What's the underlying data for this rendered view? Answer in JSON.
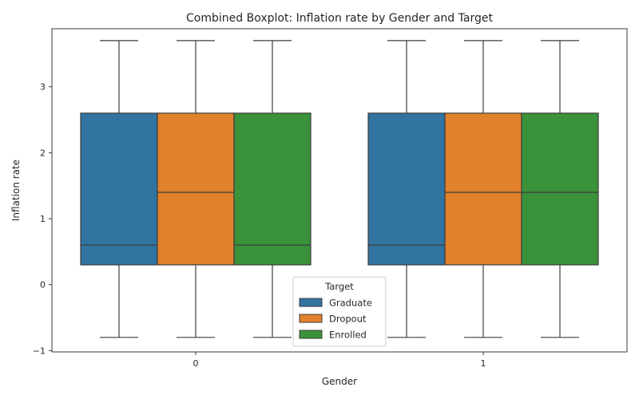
{
  "chart_data": {
    "type": "boxplot",
    "title": "Combined Boxplot: Inflation rate by Gender and Target",
    "xlabel": "Gender",
    "ylabel": "Inflation rate",
    "categories": [
      "0",
      "1"
    ],
    "ylim": [
      -1.02,
      3.88
    ],
    "yticks": [
      -1,
      0,
      1,
      2,
      3
    ],
    "ytick_labels": [
      "−1",
      "0",
      "1",
      "2",
      "3"
    ],
    "grid": false,
    "legend": {
      "title": "Target",
      "position": "lower-center"
    },
    "series": [
      {
        "name": "Graduate",
        "color": "#3274a1",
        "boxes": [
          {
            "whisker_low": -0.8,
            "q1": 0.3,
            "median": 0.6,
            "q3": 2.6,
            "whisker_high": 3.7
          },
          {
            "whisker_low": -0.8,
            "q1": 0.3,
            "median": 0.6,
            "q3": 2.6,
            "whisker_high": 3.7
          }
        ]
      },
      {
        "name": "Dropout",
        "color": "#e1812c",
        "boxes": [
          {
            "whisker_low": -0.8,
            "q1": 0.3,
            "median": 1.4,
            "q3": 2.6,
            "whisker_high": 3.7
          },
          {
            "whisker_low": -0.8,
            "q1": 0.3,
            "median": 1.4,
            "q3": 2.6,
            "whisker_high": 3.7
          }
        ]
      },
      {
        "name": "Enrolled",
        "color": "#3a923a",
        "boxes": [
          {
            "whisker_low": -0.8,
            "q1": 0.3,
            "median": 0.6,
            "q3": 2.6,
            "whisker_high": 3.7
          },
          {
            "whisker_low": -0.8,
            "q1": 0.3,
            "median": 1.4,
            "q3": 2.6,
            "whisker_high": 3.7
          }
        ]
      }
    ]
  }
}
